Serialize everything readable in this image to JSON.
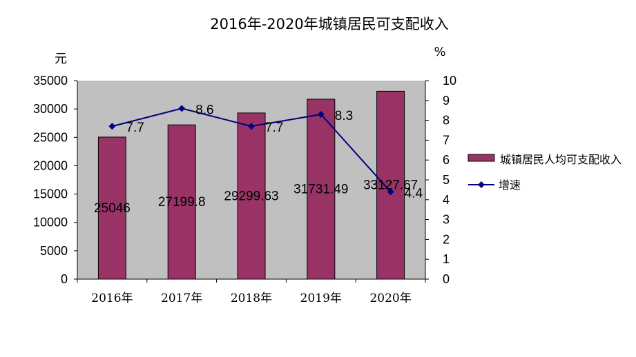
{
  "chart_data": {
    "type": "bar",
    "title": "2016年-2020年城镇居民可支配收入",
    "categories": [
      "2016年",
      "2017年",
      "2018年",
      "2019年",
      "2020年"
    ],
    "series": [
      {
        "name": "城镇居民人均可支配收入",
        "type": "bar",
        "axis": "left",
        "values": [
          25046,
          27199.8,
          29299.63,
          31731.49,
          33127.67
        ],
        "labels": [
          "25046",
          "27199.8",
          "29299.63",
          "31731.49",
          "33127.67"
        ],
        "color": "#993366"
      },
      {
        "name": "增速",
        "type": "line",
        "axis": "right",
        "values": [
          7.7,
          8.6,
          7.7,
          8.3,
          4.4
        ],
        "labels": [
          "7.7",
          "8.6",
          "7.7",
          "8.3",
          "4.4"
        ],
        "color": "#000080"
      }
    ],
    "ylabel_left": "元",
    "ylabel_right": "%",
    "ylim_left": [
      0,
      35000
    ],
    "yticks_left": [
      "0",
      "5000",
      "10000",
      "15000",
      "20000",
      "25000",
      "30000",
      "35000"
    ],
    "ylim_right": [
      0,
      10
    ],
    "yticks_right": [
      "0",
      "1",
      "2",
      "3",
      "4",
      "5",
      "6",
      "7",
      "8",
      "9",
      "10"
    ],
    "legend_position": "right",
    "grid": false,
    "plot_background": "#c0c0c0"
  }
}
